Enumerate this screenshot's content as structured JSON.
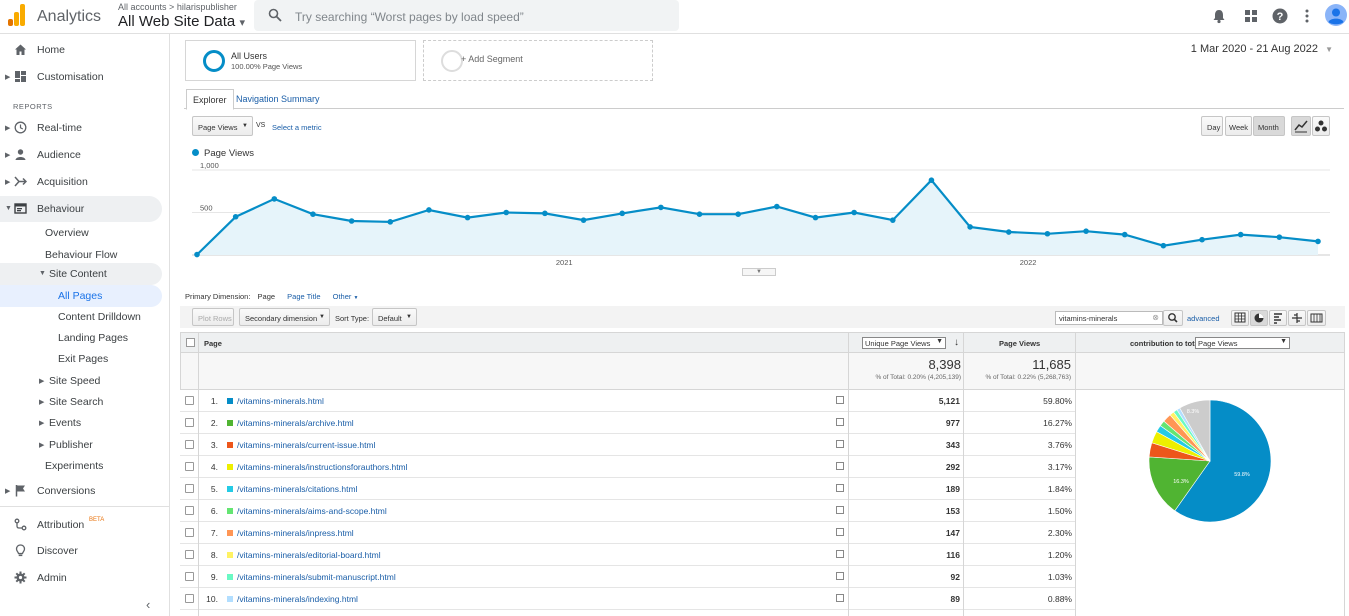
{
  "topbar": {
    "app_name": "Analytics",
    "breadcrumb_all": "All accounts",
    "breadcrumb_sep": ">",
    "breadcrumb_account": "hilarispublisher",
    "view_name": "All Web Site Data",
    "view_caret": "▾",
    "search_placeholder": "Try searching “Worst pages by load speed”"
  },
  "sidebar": {
    "home": "Home",
    "customisation": "Customisation",
    "reports_label": "REPORTS",
    "realtime": "Real-time",
    "audience": "Audience",
    "acquisition": "Acquisition",
    "behaviour": "Behaviour",
    "overview": "Overview",
    "behaviour_flow": "Behaviour Flow",
    "site_content": "Site Content",
    "all_pages": "All Pages",
    "content_drilldown": "Content Drilldown",
    "landing_pages": "Landing Pages",
    "exit_pages": "Exit Pages",
    "site_speed": "Site Speed",
    "site_search": "Site Search",
    "events": "Events",
    "publisher": "Publisher",
    "experiments": "Experiments",
    "conversions": "Conversions",
    "attribution": "Attribution",
    "attribution_badge": "BETA",
    "discover": "Discover",
    "admin": "Admin",
    "collapse": "‹"
  },
  "segments": {
    "all_users": "All Users",
    "all_users_sub": "100.00% Page Views",
    "add_segment": "+ Add Segment"
  },
  "date_range": "1 Mar 2020 - 21 Aug 2022",
  "tabs": {
    "explorer": "Explorer",
    "navigation_summary": "Navigation Summary"
  },
  "chart_controls": {
    "metric": "Page Views",
    "vs": "VS",
    "select_metric": "Select a metric",
    "day": "Day",
    "week": "Week",
    "month": "Month"
  },
  "chart_data": {
    "type": "line",
    "series": [
      {
        "name": "Page Views",
        "values": [
          5,
          450,
          660,
          480,
          400,
          390,
          530,
          440,
          500,
          490,
          410,
          490,
          560,
          480,
          480,
          570,
          440,
          500,
          410,
          880,
          330,
          270,
          250,
          280,
          240,
          110,
          180,
          240,
          210,
          160
        ]
      }
    ],
    "ylim": [
      0,
      1000
    ],
    "yticks": [
      "1,000",
      "500"
    ],
    "xticks": [
      "2021",
      "2022"
    ],
    "color": "#058dc7"
  },
  "table_controls": {
    "primary_dimension_label": "Primary Dimension:",
    "page": "Page",
    "page_title": "Page Title",
    "other": "Other",
    "plot_rows": "Plot Rows",
    "secondary_dimension": "Secondary dimension",
    "sort_type_label": "Sort Type:",
    "sort_default": "Default",
    "filter_value": "vitamins-minerals",
    "advanced": "advanced"
  },
  "table": {
    "col_page": "Page",
    "col_unique": "Unique Page Views",
    "col_views": "Page Views",
    "col_contrib": "contribution to total:",
    "contrib_select": "Page Views",
    "total_unique": "8,398",
    "total_unique_sub": "% of Total: 0.20% (4,205,139)",
    "total_views": "11,685",
    "total_views_sub": "% of Total: 0.22% (5,268,763)",
    "rows": [
      {
        "n": "1.",
        "page": "/vitamins-minerals.html",
        "unique": "5,121",
        "pct": "59.80%",
        "color": "#058dc7"
      },
      {
        "n": "2.",
        "page": "/vitamins-minerals/archive.html",
        "unique": "977",
        "pct": "16.27%",
        "color": "#50b432"
      },
      {
        "n": "3.",
        "page": "/vitamins-minerals/current-issue.html",
        "unique": "343",
        "pct": "3.76%",
        "color": "#ed561b"
      },
      {
        "n": "4.",
        "page": "/vitamins-minerals/instructionsforauthors.html",
        "unique": "292",
        "pct": "3.17%",
        "color": "#edef00"
      },
      {
        "n": "5.",
        "page": "/vitamins-minerals/citations.html",
        "unique": "189",
        "pct": "1.84%",
        "color": "#24cbe5"
      },
      {
        "n": "6.",
        "page": "/vitamins-minerals/aims-and-scope.html",
        "unique": "153",
        "pct": "1.50%",
        "color": "#64e572"
      },
      {
        "n": "7.",
        "page": "/vitamins-minerals/inpress.html",
        "unique": "147",
        "pct": "2.30%",
        "color": "#ff9655"
      },
      {
        "n": "8.",
        "page": "/vitamins-minerals/editorial-board.html",
        "unique": "116",
        "pct": "1.20%",
        "color": "#fff263"
      },
      {
        "n": "9.",
        "page": "/vitamins-minerals/submit-manuscript.html",
        "unique": "92",
        "pct": "1.03%",
        "color": "#6af9c4"
      },
      {
        "n": "10.",
        "page": "/vitamins-minerals/indexing.html",
        "unique": "89",
        "pct": "0.88%",
        "color": "#b2deff"
      }
    ]
  },
  "pie": {
    "slices": [
      59.8,
      16.27,
      3.76,
      3.17,
      1.84,
      1.5,
      2.3,
      1.2,
      1.03,
      0.88,
      8.25
    ],
    "colors": [
      "#058dc7",
      "#50b432",
      "#ed561b",
      "#edef00",
      "#24cbe5",
      "#64e572",
      "#ff9655",
      "#fff263",
      "#6af9c4",
      "#b2deff",
      "#cccccc"
    ],
    "label_big": "59.8%",
    "label_mid": "16.3%",
    "label_other": "8.3%"
  }
}
